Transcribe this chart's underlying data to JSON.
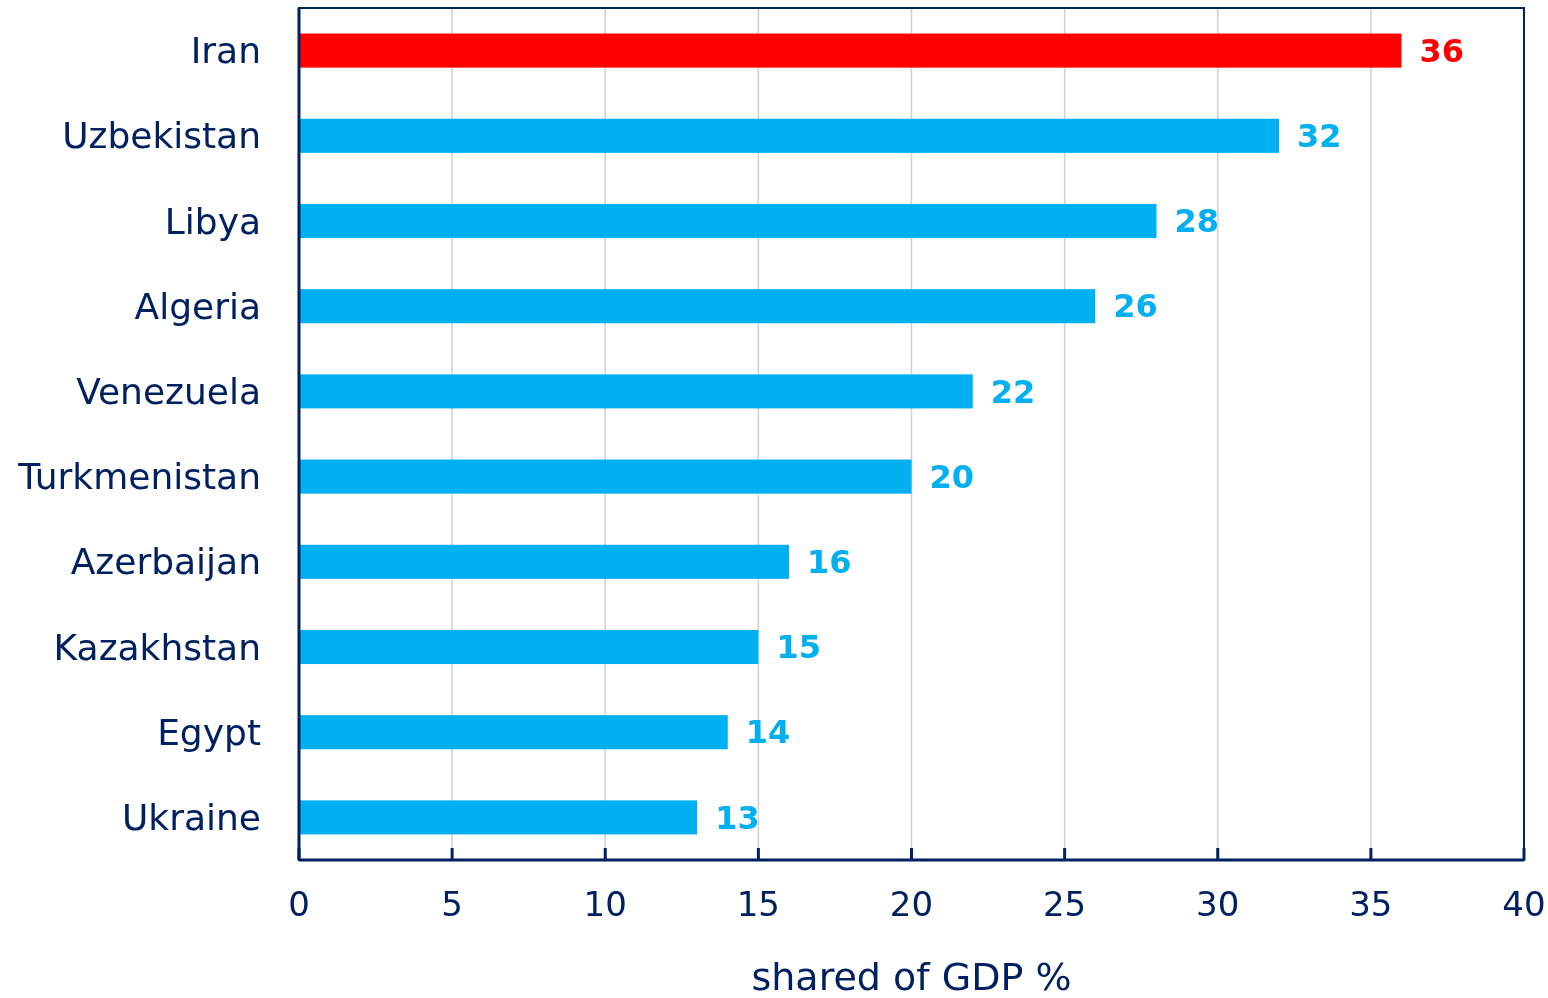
{
  "chart_data": {
    "type": "bar",
    "orientation": "horizontal",
    "xlabel": "shared of GDP %",
    "categories": [
      "Iran",
      "Uzbekistan",
      "Libya",
      "Algeria",
      "Venezuela",
      "Turkmenistan",
      "Azerbaijan",
      "Kazakhstan",
      "Egypt",
      "Ukraine"
    ],
    "values": [
      36,
      32,
      28,
      26,
      22,
      20,
      16,
      15,
      14,
      13
    ],
    "colors": [
      "#ff0000",
      "#00b0f0",
      "#00b0f0",
      "#00b0f0",
      "#00b0f0",
      "#00b0f0",
      "#00b0f0",
      "#00b0f0",
      "#00b0f0",
      "#00b0f0"
    ],
    "xlim": [
      0,
      40
    ],
    "xticks": [
      0,
      5,
      10,
      15,
      20,
      25,
      30,
      35,
      40
    ],
    "grid": "x",
    "data_labels": true
  }
}
